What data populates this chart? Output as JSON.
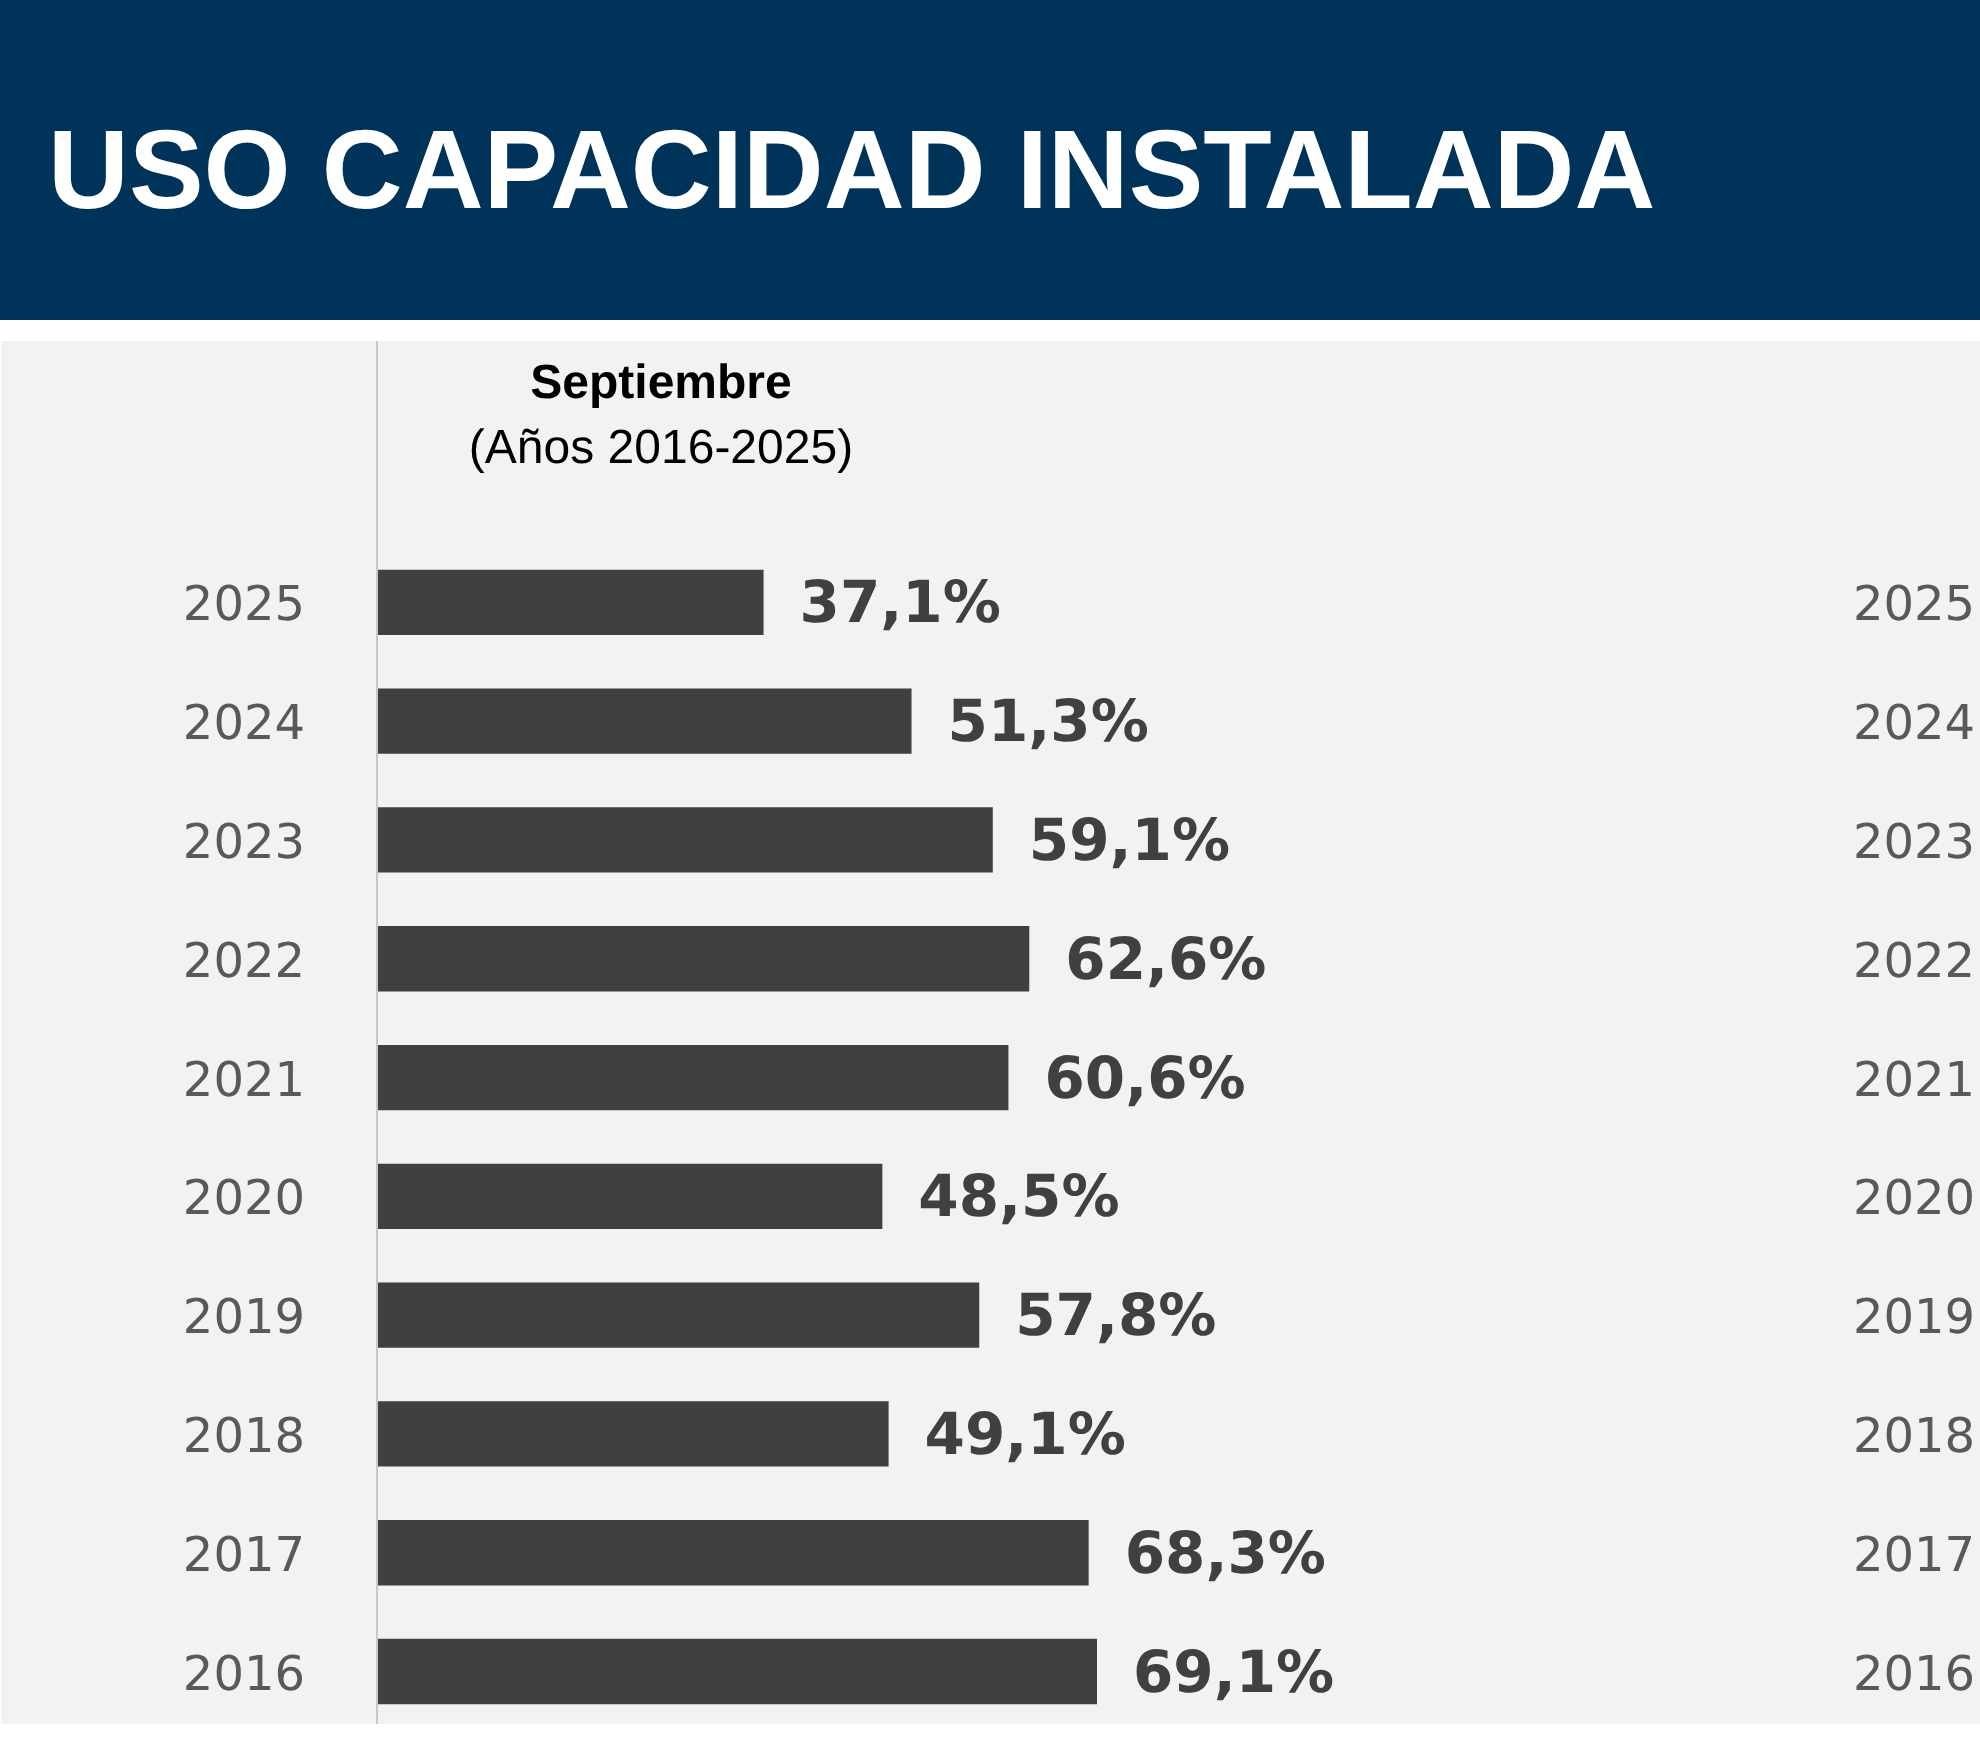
{
  "chart_data": {
    "type": "bar",
    "orientation": "horizontal",
    "title": "USO CAPACIDAD INSTALADA",
    "subtitle": "Septiembre\n(Años 2016-2025)",
    "categories": [
      "2025",
      "2024",
      "2023",
      "2022",
      "2021",
      "2020",
      "2019",
      "2018",
      "2017",
      "2016"
    ],
    "values": [
      37.1,
      51.3,
      59.1,
      62.6,
      60.6,
      48.5,
      57.8,
      49.1,
      68.3,
      69.1
    ],
    "value_labels": [
      "37,1%",
      "51,3%",
      "59,1%",
      "62,6%",
      "60,6%",
      "48,5%",
      "57,8%",
      "49,1%",
      "68,3%",
      "69,1%"
    ],
    "color": "#404040",
    "grid": false
  }
}
